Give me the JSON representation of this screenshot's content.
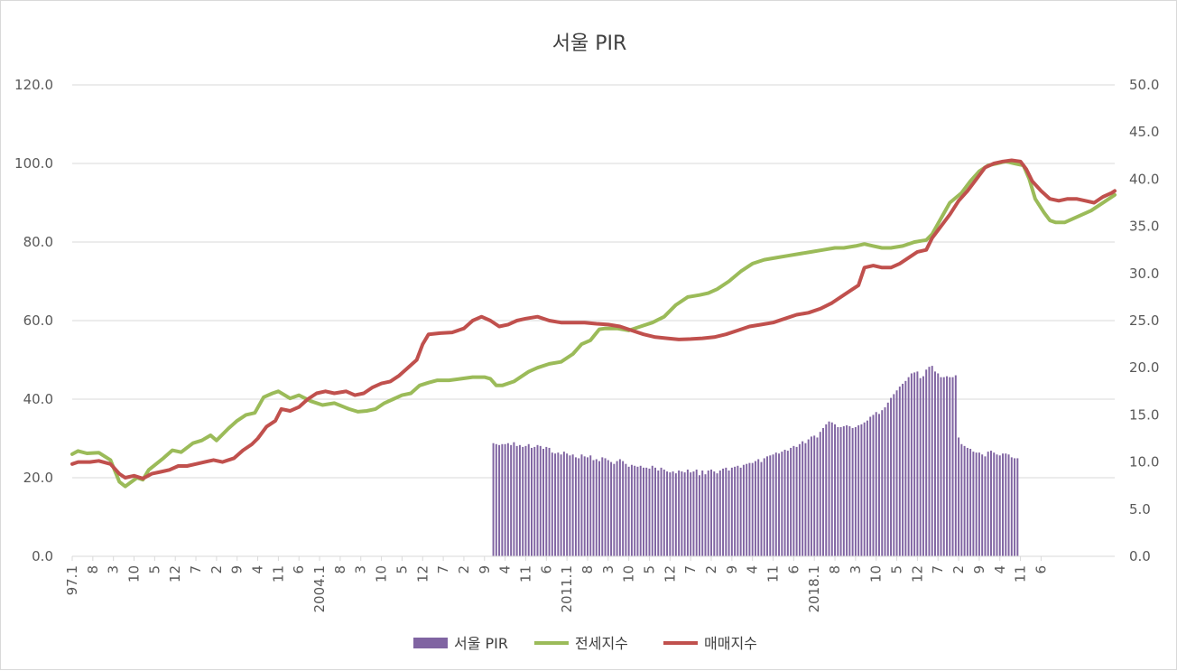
{
  "chart_data": {
    "type": "bar+line",
    "title": "서울 PIR",
    "x_axis": {
      "tick_labels": [
        "97.1",
        "8",
        "3",
        "10",
        "5",
        "12",
        "7",
        "2",
        "9",
        "4",
        "11",
        "6",
        "2004.1",
        "8",
        "3",
        "10",
        "5",
        "12",
        "7",
        "2",
        "9",
        "4",
        "11",
        "6",
        "2011.1",
        "8",
        "3",
        "10",
        "5",
        "12",
        "7",
        "2",
        "9",
        "4",
        "11",
        "6",
        "2018.1",
        "8",
        "3",
        "10",
        "5",
        "12",
        "7",
        "2",
        "9",
        "4",
        "11",
        "6"
      ]
    },
    "y_left": {
      "ylim": [
        0,
        120
      ],
      "ticks": [
        "0.0",
        "20.0",
        "40.0",
        "60.0",
        "80.0",
        "100.0",
        "120.0"
      ]
    },
    "y_right": {
      "ylim": [
        0,
        50
      ],
      "ticks": [
        "0.0",
        "5.0",
        "10.0",
        "15.0",
        "20.0",
        "25.0",
        "30.0",
        "35.0",
        "40.0",
        "45.0",
        "50.0"
      ]
    },
    "grid": "horizontal",
    "legend_position": "bottom",
    "series": [
      {
        "name": "서울 PIR",
        "kind": "bar",
        "axis": "right",
        "color": "#8064a2",
        "start_month": "2008.12",
        "values": [
          12.0,
          11.9,
          11.8,
          11.9,
          11.9,
          12.0,
          11.8,
          12.1,
          11.7,
          11.8,
          11.6,
          11.7,
          11.9,
          11.5,
          11.6,
          11.8,
          11.7,
          11.4,
          11.6,
          11.5,
          11.0,
          10.9,
          11.0,
          10.8,
          11.1,
          10.9,
          10.7,
          10.8,
          10.5,
          10.4,
          10.8,
          10.6,
          10.5,
          10.7,
          10.2,
          10.3,
          10.1,
          10.5,
          10.4,
          10.2,
          10.0,
          9.8,
          10.1,
          10.3,
          10.1,
          9.8,
          9.5,
          9.7,
          9.6,
          9.5,
          9.6,
          9.4,
          9.4,
          9.3,
          9.6,
          9.4,
          9.1,
          9.4,
          9.2,
          9.0,
          8.9,
          9.0,
          8.8,
          9.1,
          9.0,
          8.9,
          9.2,
          8.9,
          9.0,
          9.2,
          8.6,
          9.1,
          8.7,
          9.1,
          9.2,
          9.0,
          8.8,
          9.1,
          9.3,
          9.4,
          9.1,
          9.4,
          9.5,
          9.6,
          9.4,
          9.7,
          9.8,
          9.9,
          9.9,
          10.1,
          10.3,
          10.0,
          10.4,
          10.6,
          10.7,
          10.8,
          11.0,
          10.9,
          11.1,
          11.3,
          11.2,
          11.5,
          11.7,
          11.6,
          11.9,
          12.2,
          12.0,
          12.4,
          12.7,
          12.8,
          12.6,
          13.2,
          13.6,
          14.0,
          14.3,
          14.2,
          14.0,
          13.7,
          13.7,
          13.8,
          13.9,
          13.8,
          13.6,
          13.7,
          13.9,
          14.0,
          14.2,
          14.4,
          14.8,
          15.0,
          15.3,
          15.1,
          15.5,
          15.8,
          16.3,
          16.8,
          17.2,
          17.6,
          18.0,
          18.3,
          18.6,
          19.0,
          19.4,
          19.5,
          19.6,
          18.9,
          19.1,
          19.8,
          20.1,
          20.2,
          19.6,
          19.4,
          19.0,
          19.0,
          19.1,
          19.0,
          19.0,
          19.2,
          12.6,
          11.9,
          11.7,
          11.5,
          11.4,
          11.1,
          11.0,
          11.0,
          10.8,
          10.6,
          11.1,
          11.2,
          11.0,
          10.8,
          10.7,
          10.9,
          10.9,
          10.8,
          10.5,
          10.4,
          10.4
        ]
      },
      {
        "name": "전세지수",
        "kind": "line",
        "axis": "left",
        "color": "#9bbb59",
        "start_month": "1997.1",
        "anchors": [
          [
            0,
            26.0
          ],
          [
            2,
            26.8
          ],
          [
            5,
            26.2
          ],
          [
            9,
            26.4
          ],
          [
            13,
            24.5
          ],
          [
            16,
            19.0
          ],
          [
            18,
            17.8
          ],
          [
            22,
            20.0
          ],
          [
            24,
            19.5
          ],
          [
            26,
            22.0
          ],
          [
            31,
            25.0
          ],
          [
            34,
            27.0
          ],
          [
            37,
            26.5
          ],
          [
            41,
            28.8
          ],
          [
            44,
            29.5
          ],
          [
            47,
            30.8
          ],
          [
            49,
            29.5
          ],
          [
            53,
            32.5
          ],
          [
            56,
            34.5
          ],
          [
            59,
            36.0
          ],
          [
            62,
            36.5
          ],
          [
            65,
            40.5
          ],
          [
            68,
            41.5
          ],
          [
            70,
            42.0
          ],
          [
            74,
            40.2
          ],
          [
            77,
            41.0
          ],
          [
            81,
            39.5
          ],
          [
            85,
            38.5
          ],
          [
            89,
            39.0
          ],
          [
            94,
            37.5
          ],
          [
            97,
            36.8
          ],
          [
            100,
            37.0
          ],
          [
            103,
            37.5
          ],
          [
            106,
            39.0
          ],
          [
            109,
            40.0
          ],
          [
            112,
            41.0
          ],
          [
            115,
            41.5
          ],
          [
            118,
            43.5
          ],
          [
            121,
            44.2
          ],
          [
            124,
            44.8
          ],
          [
            128,
            44.8
          ],
          [
            132,
            45.2
          ],
          [
            136,
            45.6
          ],
          [
            140,
            45.6
          ],
          [
            142,
            45.2
          ],
          [
            144,
            43.5
          ],
          [
            146,
            43.5
          ],
          [
            150,
            44.5
          ],
          [
            152,
            45.5
          ],
          [
            155,
            47.0
          ],
          [
            158,
            48.0
          ],
          [
            162,
            49.0
          ],
          [
            166,
            49.5
          ],
          [
            170,
            51.5
          ],
          [
            173,
            54.0
          ],
          [
            176,
            55.0
          ],
          [
            179,
            57.8
          ],
          [
            181,
            58.0
          ],
          [
            185,
            58.0
          ],
          [
            189,
            57.5
          ],
          [
            193,
            58.5
          ],
          [
            197,
            59.5
          ],
          [
            201,
            61.0
          ],
          [
            205,
            64.0
          ],
          [
            209,
            66.0
          ],
          [
            213,
            66.5
          ],
          [
            216,
            67.0
          ],
          [
            219,
            68.0
          ],
          [
            223,
            70.0
          ],
          [
            227,
            72.5
          ],
          [
            231,
            74.5
          ],
          [
            235,
            75.5
          ],
          [
            239,
            76.0
          ],
          [
            243,
            76.5
          ],
          [
            247,
            77.0
          ],
          [
            251,
            77.5
          ],
          [
            255,
            78.0
          ],
          [
            259,
            78.5
          ],
          [
            262,
            78.5
          ],
          [
            266,
            79.0
          ],
          [
            269,
            79.5
          ],
          [
            272,
            79.0
          ],
          [
            275,
            78.5
          ],
          [
            278,
            78.5
          ],
          [
            282,
            79.0
          ],
          [
            286,
            80.0
          ],
          [
            290,
            80.5
          ],
          [
            292,
            82.0
          ],
          [
            295,
            86.0
          ],
          [
            298,
            90.0
          ],
          [
            302,
            92.5
          ],
          [
            305,
            95.5
          ],
          [
            308,
            98.0
          ],
          [
            311,
            99.5
          ],
          [
            314,
            100.0
          ],
          [
            317,
            100.5
          ],
          [
            320,
            100.0
          ],
          [
            323,
            99.5
          ],
          [
            325,
            96.0
          ],
          [
            327,
            91.0
          ],
          [
            330,
            87.5
          ],
          [
            332,
            85.5
          ],
          [
            334,
            85.0
          ],
          [
            337,
            85.0
          ],
          [
            340,
            86.0
          ],
          [
            343,
            87.0
          ],
          [
            346,
            88.0
          ],
          [
            349,
            89.5
          ],
          [
            352,
            91.0
          ],
          [
            354,
            92.0
          ]
        ]
      },
      {
        "name": "매매지수",
        "kind": "line",
        "axis": "left",
        "color": "#c0504d",
        "start_month": "1997.1",
        "anchors": [
          [
            0,
            23.5
          ],
          [
            2,
            24.0
          ],
          [
            6,
            24.0
          ],
          [
            9,
            24.3
          ],
          [
            13,
            23.5
          ],
          [
            16,
            21.0
          ],
          [
            18,
            20.0
          ],
          [
            21,
            20.5
          ],
          [
            24,
            19.8
          ],
          [
            27,
            21.0
          ],
          [
            30,
            21.5
          ],
          [
            33,
            22.0
          ],
          [
            36,
            23.0
          ],
          [
            39,
            23.0
          ],
          [
            42,
            23.5
          ],
          [
            45,
            24.0
          ],
          [
            48,
            24.5
          ],
          [
            51,
            24.0
          ],
          [
            55,
            25.0
          ],
          [
            58,
            27.0
          ],
          [
            61,
            28.5
          ],
          [
            63,
            30.0
          ],
          [
            66,
            33.0
          ],
          [
            69,
            34.5
          ],
          [
            71,
            37.5
          ],
          [
            74,
            37.0
          ],
          [
            77,
            38.0
          ],
          [
            80,
            40.0
          ],
          [
            83,
            41.5
          ],
          [
            86,
            42.0
          ],
          [
            89,
            41.5
          ],
          [
            93,
            42.0
          ],
          [
            96,
            41.0
          ],
          [
            99,
            41.5
          ],
          [
            102,
            43.0
          ],
          [
            105,
            44.0
          ],
          [
            108,
            44.5
          ],
          [
            111,
            46.0
          ],
          [
            114,
            48.0
          ],
          [
            117,
            50.0
          ],
          [
            119,
            54.0
          ],
          [
            121,
            56.5
          ],
          [
            125,
            56.8
          ],
          [
            129,
            57.0
          ],
          [
            133,
            58.0
          ],
          [
            136,
            60.0
          ],
          [
            139,
            61.0
          ],
          [
            142,
            60.0
          ],
          [
            145,
            58.5
          ],
          [
            148,
            59.0
          ],
          [
            151,
            60.0
          ],
          [
            154,
            60.5
          ],
          [
            158,
            61.0
          ],
          [
            162,
            60.0
          ],
          [
            166,
            59.5
          ],
          [
            170,
            59.5
          ],
          [
            174,
            59.5
          ],
          [
            178,
            59.2
          ],
          [
            182,
            59.0
          ],
          [
            186,
            58.5
          ],
          [
            190,
            57.5
          ],
          [
            194,
            56.5
          ],
          [
            198,
            55.8
          ],
          [
            202,
            55.5
          ],
          [
            206,
            55.2
          ],
          [
            210,
            55.3
          ],
          [
            214,
            55.5
          ],
          [
            218,
            55.8
          ],
          [
            222,
            56.5
          ],
          [
            226,
            57.5
          ],
          [
            230,
            58.5
          ],
          [
            234,
            59.0
          ],
          [
            238,
            59.5
          ],
          [
            242,
            60.5
          ],
          [
            246,
            61.5
          ],
          [
            250,
            62.0
          ],
          [
            254,
            63.0
          ],
          [
            258,
            64.5
          ],
          [
            262,
            66.5
          ],
          [
            265,
            68.0
          ],
          [
            267,
            69.0
          ],
          [
            269,
            73.5
          ],
          [
            272,
            74.0
          ],
          [
            275,
            73.5
          ],
          [
            278,
            73.5
          ],
          [
            281,
            74.5
          ],
          [
            284,
            76.0
          ],
          [
            287,
            77.5
          ],
          [
            290,
            78.0
          ],
          [
            292,
            81.0
          ],
          [
            295,
            84.0
          ],
          [
            298,
            87.0
          ],
          [
            301,
            90.5
          ],
          [
            304,
            93.0
          ],
          [
            307,
            96.0
          ],
          [
            310,
            99.0
          ],
          [
            313,
            100.0
          ],
          [
            316,
            100.5
          ],
          [
            319,
            100.8
          ],
          [
            322,
            100.5
          ],
          [
            324,
            98.5
          ],
          [
            326,
            95.5
          ],
          [
            329,
            93.0
          ],
          [
            332,
            91.0
          ],
          [
            335,
            90.5
          ],
          [
            338,
            91.0
          ],
          [
            341,
            91.0
          ],
          [
            344,
            90.5
          ],
          [
            347,
            90.0
          ],
          [
            350,
            91.5
          ],
          [
            353,
            92.5
          ],
          [
            354,
            93.0
          ]
        ]
      }
    ]
  }
}
